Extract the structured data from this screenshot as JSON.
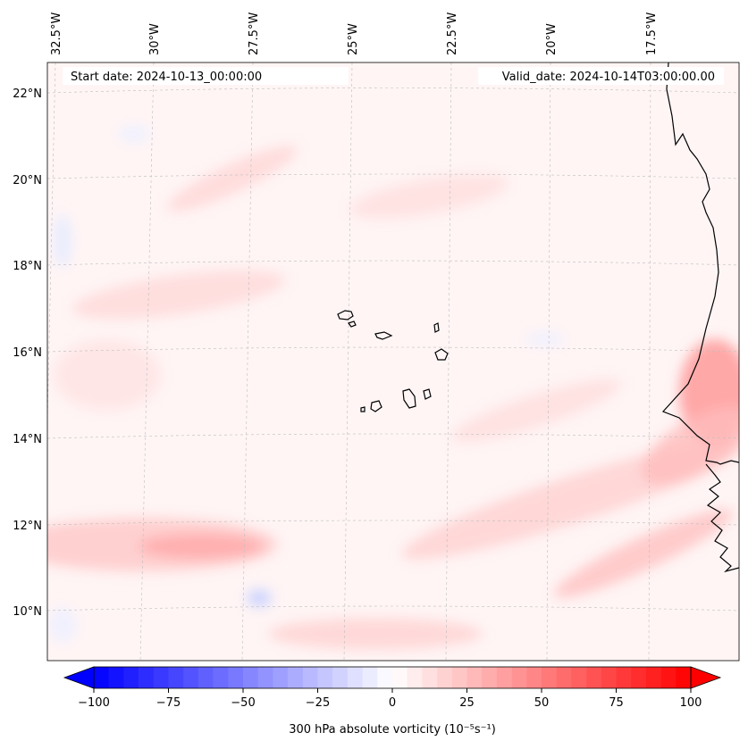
{
  "map": {
    "start_date_label": "Start date: 2024-10-13_00:00:00",
    "valid_date_label": "Valid_date: 2024-10-14T03:00:00.00",
    "lon_labels": [
      "32.5°W",
      "30°W",
      "27.5°W",
      "25°W",
      "22.5°W",
      "20°W",
      "17.5°W"
    ],
    "lat_labels": [
      "22°N",
      "20°N",
      "18°N",
      "16°N",
      "14°N",
      "12°N",
      "10°N"
    ]
  },
  "colorbar": {
    "label": "300 hPa absolute vorticity (10⁻⁵s⁻¹)",
    "ticks": [
      "−100",
      "−75",
      "−50",
      "−25",
      "0",
      "25",
      "50",
      "75",
      "100"
    ],
    "min": -100,
    "max": 100,
    "low_color": "#0000ff",
    "mid_color": "#ffffff",
    "high_color": "#ff0000"
  }
}
